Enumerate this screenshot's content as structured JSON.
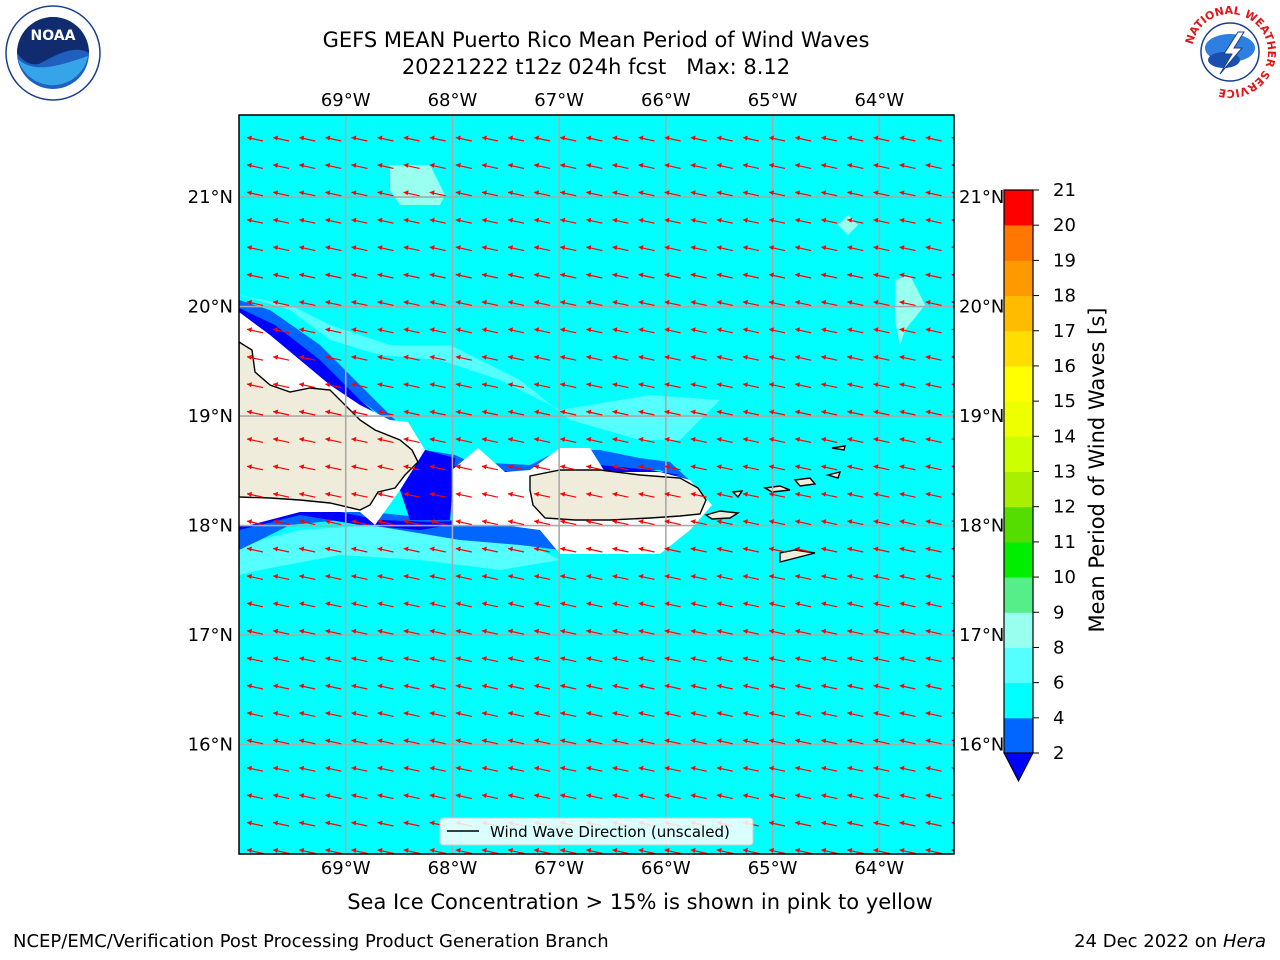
{
  "title": {
    "line1": "GEFS MEAN Puerto Rico Mean Period of Wind Waves",
    "line2": "20221222 t12z 024h fcst   Max: 8.12"
  },
  "map": {
    "lon_range": [
      -70.0,
      -63.3
    ],
    "lat_range": [
      15.0,
      21.75
    ],
    "lon_ticks": [
      -69,
      -68,
      -67,
      -66,
      -65,
      -64
    ],
    "lat_ticks": [
      16,
      17,
      18,
      19,
      20,
      21
    ],
    "lon_labels": [
      "69°W",
      "68°W",
      "67°W",
      "66°W",
      "65°W",
      "64°W"
    ],
    "lat_labels": [
      "16°N",
      "17°N",
      "18°N",
      "19°N",
      "20°N",
      "21°N"
    ],
    "grid": true,
    "ocean_color": "#00ffff",
    "land_color": "#efecdc",
    "arrow_color": "#ff0000"
  },
  "legend": {
    "label": "Wind Wave Direction (unscaled)",
    "placement": "bottom-center"
  },
  "colorbar": {
    "label": "Mean Period of Wind Waves [s]",
    "ticks": [
      "2",
      "4",
      "6",
      "8",
      "9",
      "10",
      "11",
      "12",
      "13",
      "14",
      "15",
      "16",
      "17",
      "18",
      "19",
      "20",
      "21"
    ],
    "levels": [
      2,
      4,
      6,
      8,
      9,
      10,
      11,
      12,
      13,
      14,
      15,
      16,
      17,
      18,
      19,
      20,
      21
    ],
    "colors": [
      "#0066ff",
      "#00ffff",
      "#55ffff",
      "#99ffee",
      "#55ee88",
      "#00ee00",
      "#55dd00",
      "#aaee00",
      "#ccff00",
      "#eeff00",
      "#ffff00",
      "#ffdd00",
      "#ffbb00",
      "#ff9900",
      "#ff7700",
      "#ff4400",
      "#ff0000"
    ],
    "under_color": "#0000ff"
  },
  "caption": "Sea Ice Concentration > 15% is shown in pink to yellow",
  "footer": {
    "left": "NCEP/EMC/Verification Post Processing Product Generation Branch",
    "right_prefix": "24 Dec 2022 on ",
    "right_machine": "Hera"
  },
  "logos": {
    "noaa_text": "NOAA",
    "nws_ring_text": "NATIONAL WEATHER SERVICE"
  }
}
